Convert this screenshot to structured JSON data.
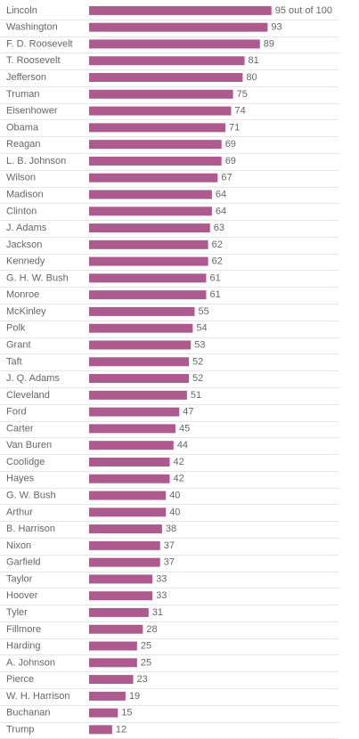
{
  "chart_data": {
    "type": "bar",
    "orientation": "horizontal",
    "bar_color": "#ad5b8f",
    "label_color": "#666666",
    "rule_color": "#e6e6e6",
    "value_suffix_first": " out of 100",
    "xlim": [
      0,
      100
    ],
    "grid": false,
    "legend": "none",
    "categories": [
      "Lincoln",
      "Washington",
      "F. D. Roosevelt",
      "T. Roosevelt",
      "Jefferson",
      "Truman",
      "Eisenhower",
      "Obama",
      "Reagan",
      "L. B. Johnson",
      "Wilson",
      "Madison",
      "Clinton",
      "J. Adams",
      "Jackson",
      "Kennedy",
      "G. H. W. Bush",
      "Monroe",
      "McKinley",
      "Polk",
      "Grant",
      "Taft",
      "J. Q. Adams",
      "Cleveland",
      "Ford",
      "Carter",
      "Van Buren",
      "Coolidge",
      "Hayes",
      "G. W. Bush",
      "Arthur",
      "B. Harrison",
      "Nixon",
      "Garfield",
      "Taylor",
      "Hoover",
      "Tyler",
      "Fillmore",
      "Harding",
      "A. Johnson",
      "Pierce",
      "W. H. Harrison",
      "Buchanan",
      "Trump"
    ],
    "values": [
      95,
      93,
      89,
      81,
      80,
      75,
      74,
      71,
      69,
      69,
      67,
      64,
      64,
      63,
      62,
      62,
      61,
      61,
      55,
      54,
      53,
      52,
      52,
      51,
      47,
      45,
      44,
      42,
      42,
      40,
      40,
      38,
      37,
      37,
      33,
      33,
      31,
      28,
      25,
      25,
      23,
      19,
      15,
      12
    ]
  }
}
